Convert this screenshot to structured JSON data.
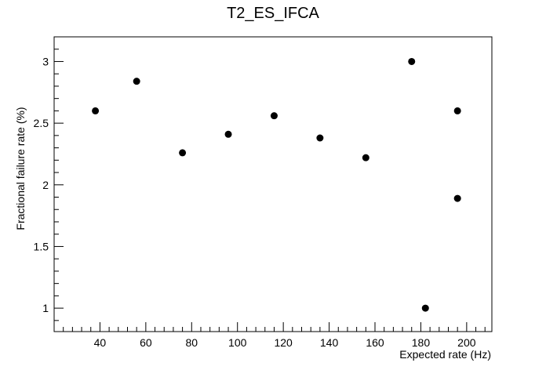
{
  "chart_data": {
    "type": "scatter",
    "title": "T2_ES_IFCA",
    "xlabel": "Expected rate (Hz)",
    "ylabel": "Fractional failure rate (%)",
    "xlim": [
      20,
      211
    ],
    "ylim": [
      0.81,
      3.2
    ],
    "x_ticks": [
      40,
      60,
      80,
      100,
      120,
      140,
      160,
      180,
      200
    ],
    "y_ticks": [
      1,
      1.5,
      2,
      2.5,
      3
    ],
    "x_tick_labels": [
      "40",
      "60",
      "80",
      "100",
      "120",
      "140",
      "160",
      "180",
      "200"
    ],
    "y_tick_labels": [
      "1",
      "1.5",
      "2",
      "2.5",
      "3"
    ],
    "grid": false,
    "legend": "none",
    "marker_color": "#000000",
    "points": [
      {
        "x": 38,
        "y": 2.6
      },
      {
        "x": 56,
        "y": 2.84
      },
      {
        "x": 76,
        "y": 2.26
      },
      {
        "x": 96,
        "y": 2.41
      },
      {
        "x": 116,
        "y": 2.56
      },
      {
        "x": 136,
        "y": 2.38
      },
      {
        "x": 156,
        "y": 2.22
      },
      {
        "x": 176,
        "y": 3.0
      },
      {
        "x": 182,
        "y": 1.0
      },
      {
        "x": 196,
        "y": 2.6
      },
      {
        "x": 196,
        "y": 1.89
      }
    ]
  }
}
